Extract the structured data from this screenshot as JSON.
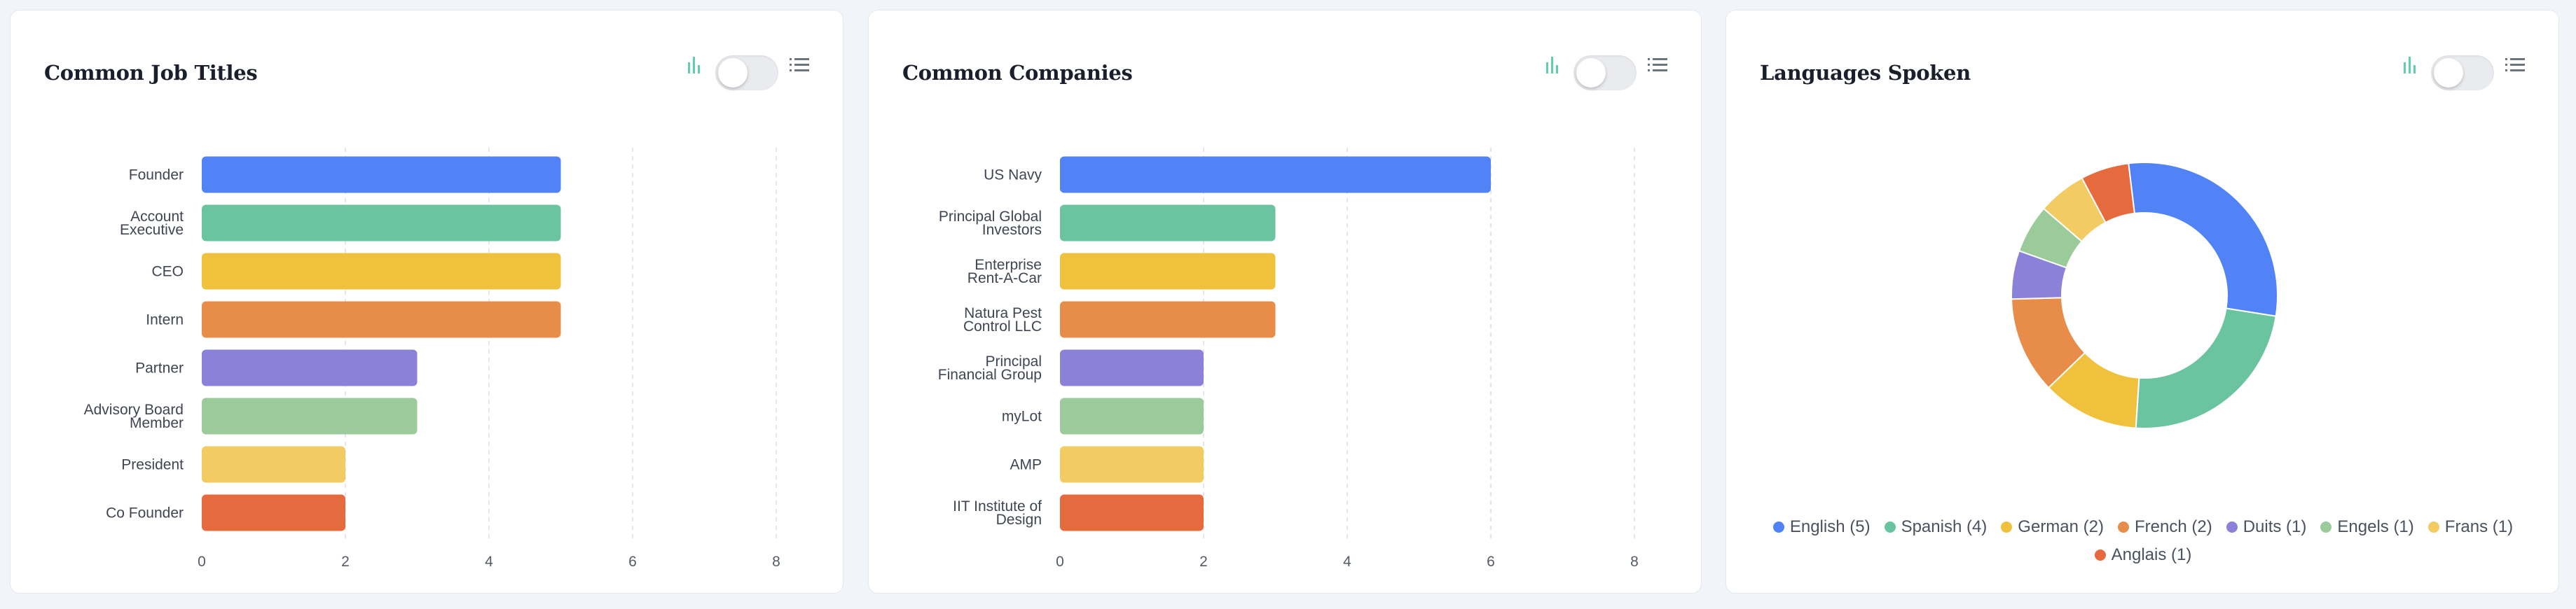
{
  "colors": {
    "palette": [
      "#5183f7",
      "#6bc4a0",
      "#efc13c",
      "#e88c4a",
      "#8c81d8",
      "#9bca9b",
      "#f2cc63",
      "#e56b3e"
    ],
    "toggle_icon": "#5fd0a8"
  },
  "cards": [
    {
      "title": "Common Job Titles",
      "icons": {
        "chart": "bar-chart-icon",
        "list": "list-icon"
      },
      "toggle_on": false
    },
    {
      "title": "Common Companies",
      "icons": {
        "chart": "bar-chart-icon",
        "list": "list-icon"
      },
      "toggle_on": false
    },
    {
      "title": "Languages Spoken",
      "icons": {
        "chart": "bar-chart-icon",
        "list": "list-icon"
      },
      "toggle_on": false
    }
  ],
  "chart_data": [
    {
      "type": "bar",
      "orientation": "horizontal",
      "categories": [
        [
          "Founder"
        ],
        [
          "Account",
          "Executive"
        ],
        [
          "CEO"
        ],
        [
          "Intern"
        ],
        [
          "Partner"
        ],
        [
          "Advisory Board",
          "Member"
        ],
        [
          "President"
        ],
        [
          "Co Founder"
        ]
      ],
      "values": [
        5,
        5,
        5,
        5,
        3,
        3,
        2,
        2
      ],
      "xticks": [
        "0",
        "2",
        "4",
        "6",
        "8"
      ],
      "xlim": [
        0,
        8
      ],
      "grid": "vertical dashed"
    },
    {
      "type": "bar",
      "orientation": "horizontal",
      "categories": [
        [
          "US Navy"
        ],
        [
          "Principal Global",
          "Investors"
        ],
        [
          "Enterprise",
          "Rent-A-Car"
        ],
        [
          "Natura Pest",
          "Control LLC"
        ],
        [
          "Principal",
          "Financial Group"
        ],
        [
          "myLot"
        ],
        [
          "AMP"
        ],
        [
          "IIT Institute of",
          "Design"
        ]
      ],
      "values": [
        6,
        3,
        3,
        3,
        2,
        2,
        2,
        2
      ],
      "xticks": [
        "0",
        "2",
        "4",
        "6",
        "8"
      ],
      "xlim": [
        0,
        8
      ],
      "grid": "vertical dashed"
    },
    {
      "type": "pie",
      "style": "donut",
      "labels": [
        "English",
        "Spanish",
        "German",
        "French",
        "Duits",
        "Engels",
        "Frans",
        "Anglais"
      ],
      "values": [
        5,
        4,
        2,
        2,
        1,
        1,
        1,
        1
      ],
      "legend_labels": [
        "English (5)",
        "Spanish (4)",
        "German (2)",
        "French (2)",
        "Duits (1)",
        "Engels (1)",
        "Frans (1)",
        "Anglais (1)"
      ],
      "legend_position": "bottom"
    }
  ]
}
